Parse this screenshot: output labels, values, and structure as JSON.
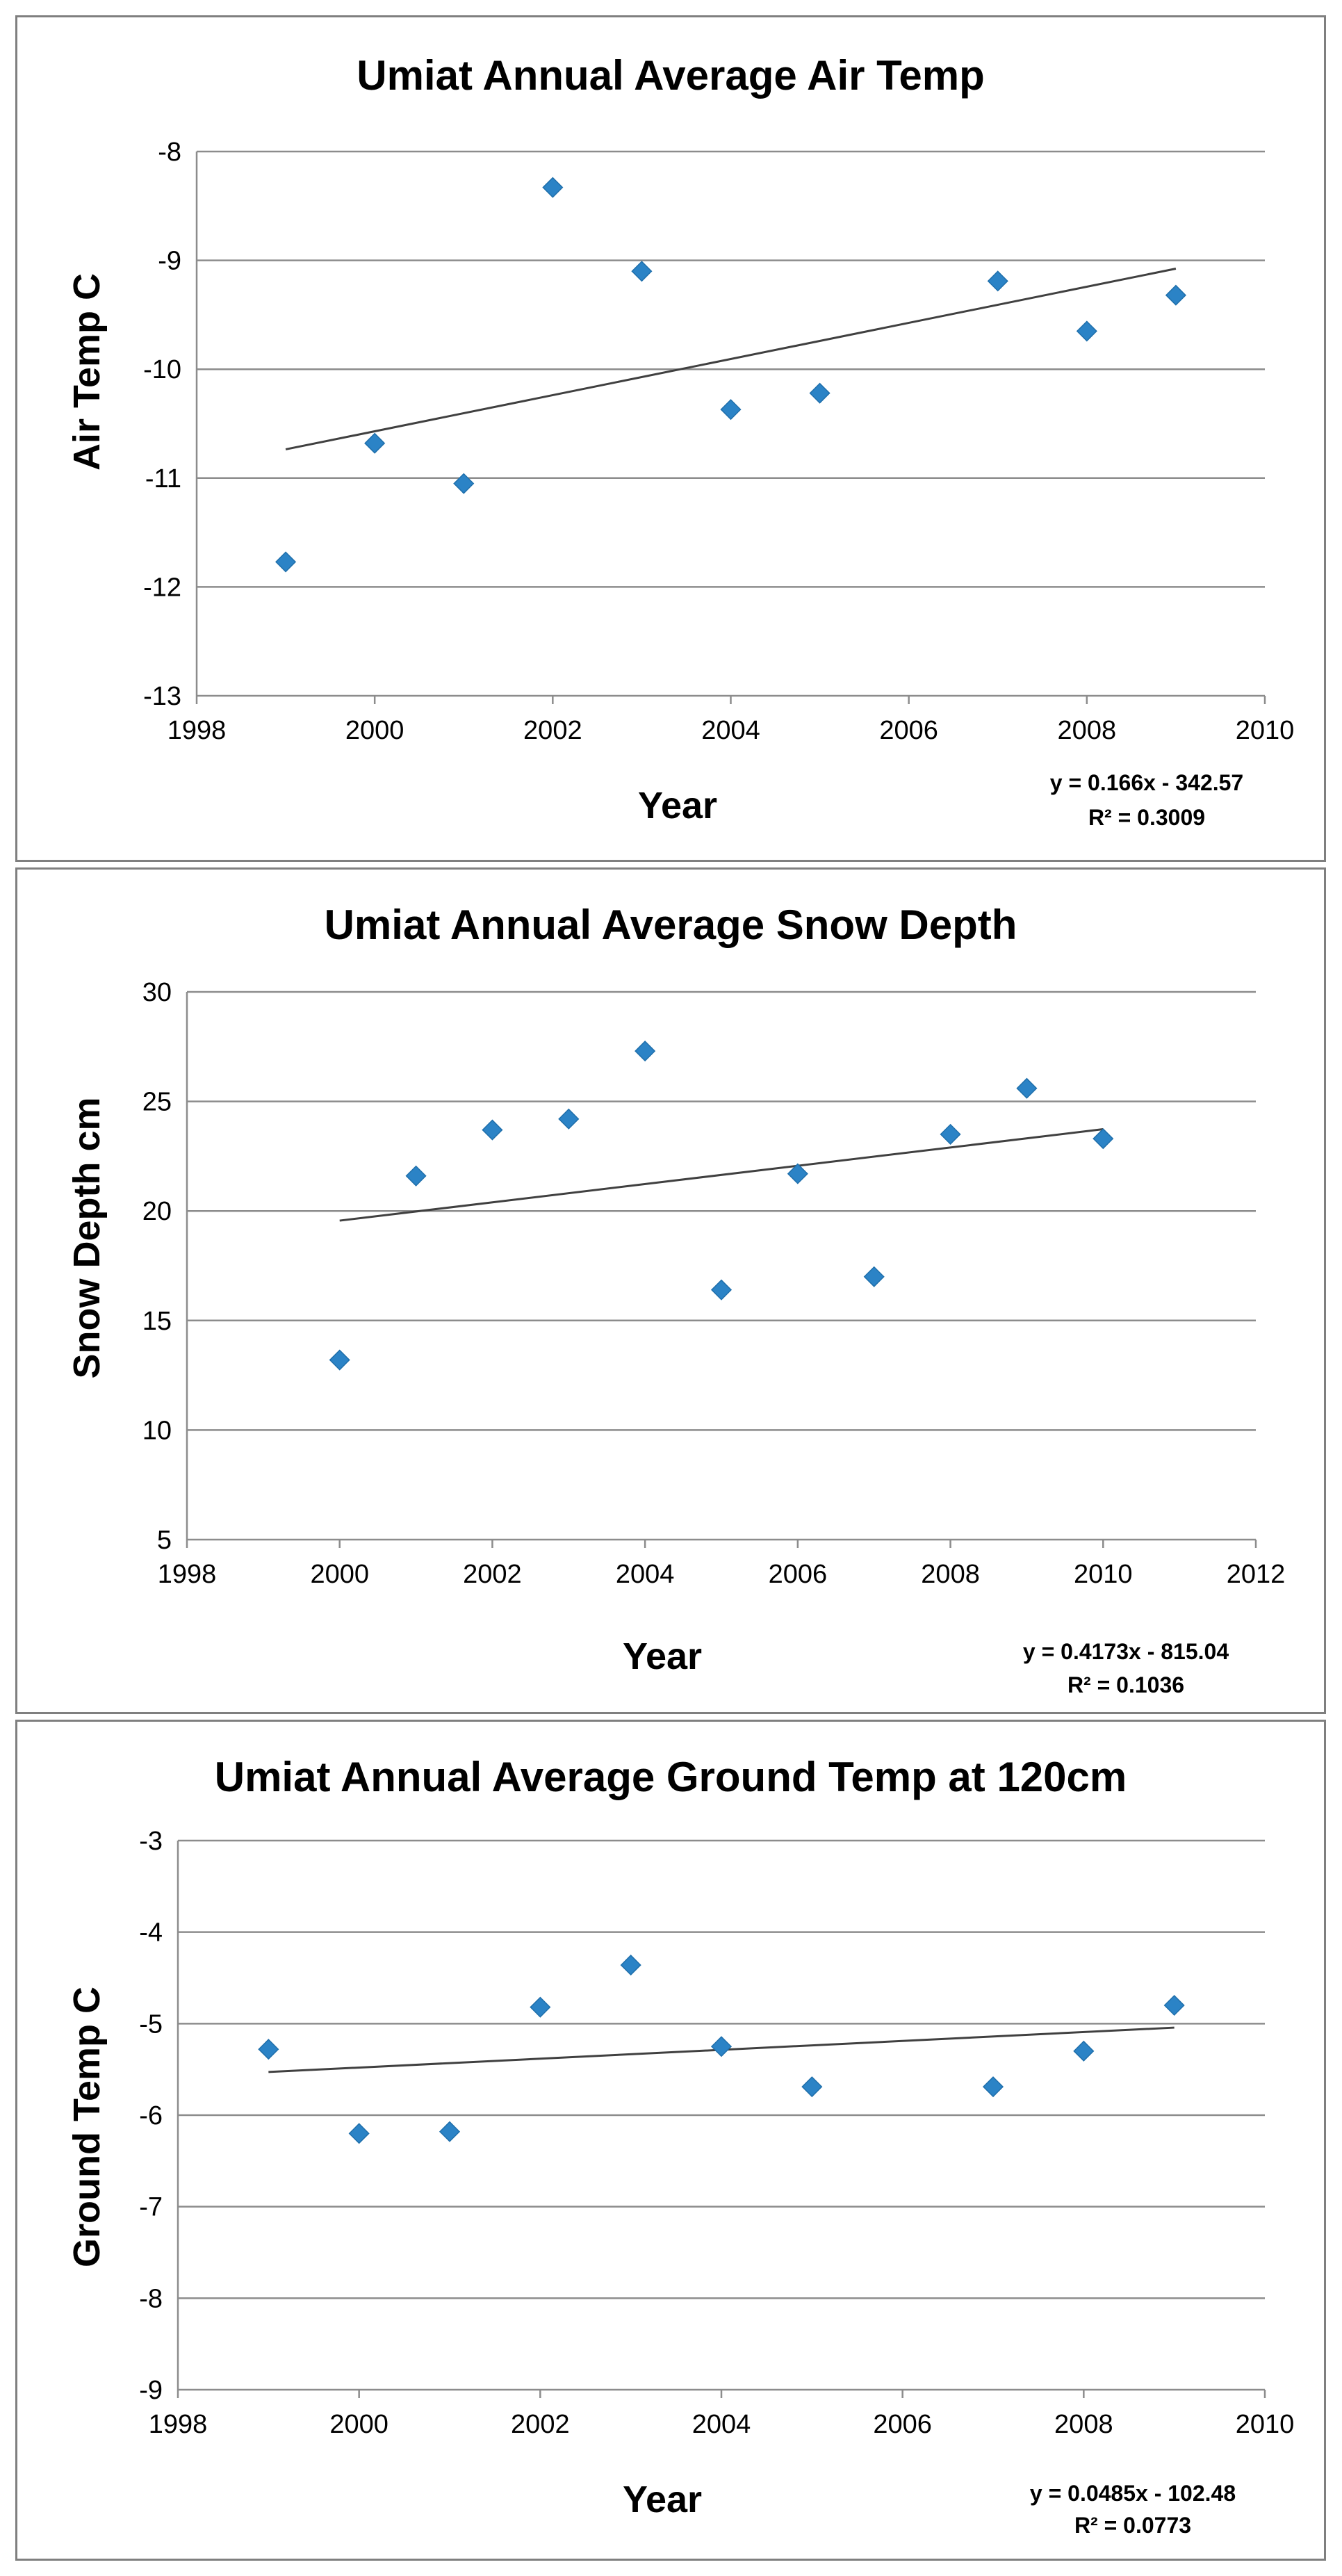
{
  "colors": {
    "marker": "#2b83c6",
    "trendline": "#404040",
    "grid": "#8c8c8c",
    "border": "#7f7f7f"
  },
  "chart_data": [
    {
      "type": "scatter",
      "title": "Umiat Annual Average Air Temp",
      "xlabel": "Year",
      "ylabel": "Air Temp  C",
      "xlim": [
        1998,
        2010
      ],
      "ylim": [
        -13,
        -8
      ],
      "xticks": [
        "1998",
        "2000",
        "2002",
        "2004",
        "2006",
        "2008",
        "2010"
      ],
      "yticks": [
        "-8",
        "-9",
        "-10",
        "-11",
        "-12",
        "-13"
      ],
      "x": [
        1999,
        2000,
        2001,
        2002,
        2003,
        2004,
        2005,
        2007,
        2008,
        2009
      ],
      "y": [
        -11.77,
        -10.68,
        -11.05,
        -8.33,
        -9.1,
        -10.37,
        -10.22,
        -9.19,
        -9.65,
        -9.32
      ],
      "trendline": {
        "slope": 0.166,
        "intercept": -342.57,
        "x_start": 1999,
        "x_end": 2009
      },
      "equation": "y = 0.166x - 342.57",
      "r_squared": "R² = 0.3009",
      "grid": true,
      "legend": "none"
    },
    {
      "type": "scatter",
      "title": "Umiat Annual Average Snow Depth",
      "xlabel": "Year",
      "ylabel": "Snow Depth cm",
      "xlim": [
        1998,
        2012
      ],
      "ylim": [
        5,
        30
      ],
      "xticks": [
        "1998",
        "2000",
        "2002",
        "2004",
        "2006",
        "2008",
        "2010",
        "2012"
      ],
      "yticks": [
        "30",
        "25",
        "20",
        "15",
        "10",
        "5"
      ],
      "x": [
        2000,
        2001,
        2002,
        2003,
        2004,
        2005,
        2006,
        2007,
        2008,
        2009,
        2010
      ],
      "y": [
        13.2,
        21.6,
        23.7,
        24.2,
        27.3,
        16.4,
        21.7,
        17.0,
        23.5,
        25.6,
        23.3
      ],
      "trendline": {
        "slope": 0.4173,
        "intercept": -815.04,
        "x_start": 2000,
        "x_end": 2010
      },
      "equation": "y = 0.4173x - 815.04",
      "r_squared": "R² = 0.1036",
      "grid": true,
      "legend": "none"
    },
    {
      "type": "scatter",
      "title": "Umiat Annual Average Ground Temp at 120cm",
      "xlabel": "Year",
      "ylabel": "Ground Temp  C",
      "xlim": [
        1998,
        2010
      ],
      "ylim": [
        -9,
        -3
      ],
      "xticks": [
        "1998",
        "2000",
        "2002",
        "2004",
        "2006",
        "2008",
        "2010"
      ],
      "yticks": [
        "-3",
        "-4",
        "-5",
        "-6",
        "-7",
        "-8",
        "-9"
      ],
      "x": [
        1999,
        2000,
        2001,
        2002,
        2003,
        2004,
        2005,
        2007,
        2008,
        2009
      ],
      "y": [
        -5.28,
        -6.2,
        -6.18,
        -4.82,
        -4.36,
        -5.25,
        -5.69,
        -5.69,
        -5.3,
        -4.8
      ],
      "trendline": {
        "slope": 0.0485,
        "intercept": -102.48,
        "x_start": 1999,
        "x_end": 2009
      },
      "equation": "y = 0.0485x - 102.48",
      "r_squared": "R² = 0.0773",
      "grid": true,
      "legend": "none"
    }
  ]
}
